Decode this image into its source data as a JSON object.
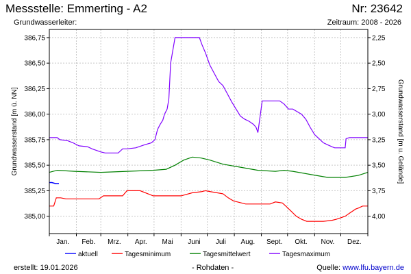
{
  "header": {
    "title": "Messstelle: Emmerting - A2",
    "station_nr": "Nr: 23642",
    "aquifer": "Grundwasserleiter:",
    "period": "Zeitraum: 2008 - 2026"
  },
  "footer": {
    "created": "erstellt:  19.01.2026",
    "raw": "- Rohdaten -",
    "source_label": "Quelle: ",
    "source_link": "www.lfu.bayern.de"
  },
  "colors": {
    "aktuell": "#0000ff",
    "min": "#ff0000",
    "mean": "#008000",
    "max": "#8000ff",
    "grid": "#c8c8c8"
  },
  "chart_data": {
    "type": "line",
    "xlabel": "",
    "ylabel_left": "Grundwasserstand [m ü. NN]",
    "ylabel_right": "Grundwasserstand [m u. Gelände]",
    "categories": [
      "Jan.",
      "Feb.",
      "Mrz.",
      "Apr.",
      "Mai",
      "Juni",
      "Juli",
      "Aug.",
      "Sept.",
      "Okt.",
      "Nov.",
      "Dez."
    ],
    "x_unit": "day of year",
    "xlim": [
      1,
      366
    ],
    "ylim": [
      384.83,
      386.83
    ],
    "y_ticks": [
      385.0,
      385.25,
      385.5,
      385.75,
      386.0,
      386.25,
      386.5,
      386.75
    ],
    "y_tick_labels": [
      "385,00",
      "385,25",
      "385,50",
      "385,75",
      "386,00",
      "386,25",
      "386,50",
      "386,75"
    ],
    "y2_ticks": [
      2.25,
      2.5,
      2.75,
      3.0,
      3.25,
      3.5,
      3.75,
      4.0
    ],
    "y2_tick_labels": [
      "2,25",
      "2,50",
      "2,75",
      "3,00",
      "3,25",
      "3,50",
      "3,75",
      "4,00"
    ],
    "y2_datum": 389.0,
    "grid": true,
    "legend_position": "bottom",
    "series": [
      {
        "name": "aktuell",
        "x": [
          1,
          4,
          8,
          12
        ],
        "y": [
          385.33,
          385.33,
          385.32,
          385.32
        ]
      },
      {
        "name": "Tagesminimum",
        "x": [
          1,
          6,
          9,
          14,
          20,
          32,
          45,
          58,
          63,
          75,
          85,
          90,
          95,
          105,
          120,
          135,
          152,
          165,
          175,
          180,
          186,
          193,
          200,
          206,
          212,
          226,
          240,
          250,
          254,
          260,
          268,
          272,
          278,
          284,
          290,
          296,
          305,
          315,
          325,
          330,
          340,
          345,
          352,
          355,
          360,
          366
        ],
        "y": [
          385.1,
          385.1,
          385.18,
          385.18,
          385.17,
          385.17,
          385.17,
          385.17,
          385.2,
          385.2,
          385.2,
          385.25,
          385.25,
          385.25,
          385.2,
          385.2,
          385.2,
          385.23,
          385.24,
          385.25,
          385.24,
          385.23,
          385.22,
          385.18,
          385.15,
          385.12,
          385.12,
          385.12,
          385.12,
          385.14,
          385.13,
          385.1,
          385.05,
          385.0,
          384.97,
          384.95,
          384.95,
          384.95,
          384.96,
          384.97,
          385.0,
          385.03,
          385.07,
          385.08,
          385.1,
          385.1
        ]
      },
      {
        "name": "Tagesmittelwert",
        "x": [
          1,
          10,
          30,
          60,
          90,
          120,
          135,
          145,
          155,
          165,
          175,
          185,
          200,
          220,
          240,
          260,
          270,
          280,
          300,
          320,
          340,
          355,
          366
        ],
        "y": [
          385.43,
          385.45,
          385.44,
          385.43,
          385.44,
          385.45,
          385.46,
          385.5,
          385.55,
          385.58,
          385.57,
          385.55,
          385.51,
          385.48,
          385.45,
          385.44,
          385.45,
          385.44,
          385.41,
          385.38,
          385.38,
          385.4,
          385.43
        ]
      },
      {
        "name": "Tagesmaximum",
        "x": [
          1,
          10,
          13,
          22,
          28,
          35,
          45,
          50,
          60,
          65,
          80,
          85,
          90,
          100,
          110,
          118,
          122,
          125,
          128,
          131,
          133,
          136,
          138,
          140,
          145,
          150,
          165,
          173,
          176,
          180,
          185,
          190,
          195,
          200,
          205,
          210,
          215,
          220,
          225,
          230,
          235,
          238,
          240,
          245,
          258,
          265,
          270,
          275,
          280,
          290,
          295,
          300,
          305,
          310,
          315,
          320,
          325,
          328,
          330,
          340,
          341,
          345,
          355,
          366
        ],
        "y": [
          385.77,
          385.77,
          385.75,
          385.74,
          385.72,
          385.69,
          385.68,
          385.66,
          385.63,
          385.62,
          385.62,
          385.66,
          385.66,
          385.67,
          385.7,
          385.72,
          385.75,
          385.85,
          385.9,
          385.94,
          386.0,
          386.05,
          386.15,
          386.5,
          386.75,
          386.75,
          386.75,
          386.75,
          386.68,
          386.6,
          386.48,
          386.4,
          386.32,
          386.28,
          386.2,
          386.12,
          386.05,
          385.98,
          385.95,
          385.93,
          385.9,
          385.87,
          385.82,
          386.13,
          386.13,
          386.13,
          386.1,
          386.05,
          386.05,
          386.0,
          385.95,
          385.87,
          385.8,
          385.76,
          385.72,
          385.7,
          385.68,
          385.67,
          385.67,
          385.67,
          385.76,
          385.77,
          385.77,
          385.77
        ]
      }
    ]
  }
}
